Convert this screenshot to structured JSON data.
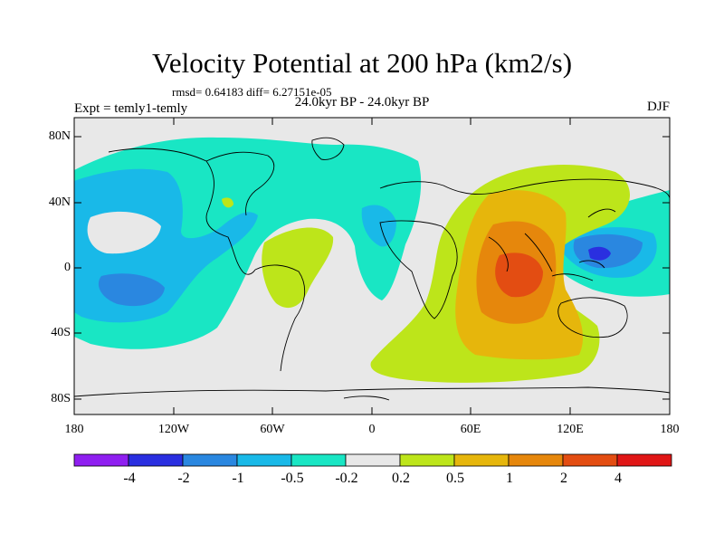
{
  "title": "Velocity Potential at 200 hPa (km2/s)",
  "stats": "rmsd= 0.64183  diff= 6.27151e-05",
  "left_label": "Expt = temly1-temly",
  "center_label": "24.0kyr BP - 24.0kyr BP",
  "right_label": "DJF",
  "axes": {
    "lat_ticks": [
      "80N",
      "40N",
      "0",
      "40S",
      "80S"
    ],
    "lon_ticks": [
      "180",
      "120W",
      "60W",
      "0",
      "60E",
      "120E",
      "180"
    ]
  },
  "colorbar": {
    "colors": [
      "#8f1ff0",
      "#2a2fe0",
      "#2a87e0",
      "#19b9e8",
      "#19e6c4",
      "#e8e8e8",
      "#bde51a",
      "#e6b60c",
      "#e6870c",
      "#e34d12",
      "#e01616"
    ],
    "labels": [
      "-4",
      "-2",
      "-1",
      "-0.5",
      "-0.2",
      "0.2",
      "0.5",
      "1",
      "2",
      "4"
    ]
  },
  "colors": {
    "background": "#e8e8e8",
    "coast": "#000000"
  }
}
